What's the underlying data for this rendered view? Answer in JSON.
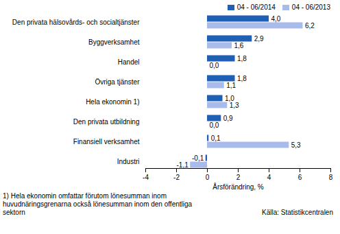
{
  "chart_data": {
    "type": "bar",
    "orientation": "horizontal",
    "categories": [
      "Den privata hälsovårds- och socialtjänster",
      "Byggverksamhet",
      "Handel",
      "Övriga tjänster",
      "Hela ekonomin 1)",
      "Den privata utbildning",
      "Finansiell verksamhet",
      "Industri"
    ],
    "series": [
      {
        "name": "04 - 06/2014",
        "color": "#1f5fb4",
        "values": [
          4.0,
          2.9,
          1.8,
          1.8,
          1.0,
          0.9,
          0.1,
          -0.1
        ],
        "value_labels": [
          "4,0",
          "2,9",
          "1,8",
          "1,8",
          "1,0",
          "0,9",
          "0,1",
          "-0,1"
        ]
      },
      {
        "name": "04 - 06/2013",
        "color": "#a9bbeb",
        "values": [
          6.2,
          1.6,
          0.0,
          1.1,
          1.3,
          0.0,
          5.3,
          -1.1
        ],
        "value_labels": [
          "6,2",
          "1,6",
          "0,0",
          "1,1",
          "1,3",
          "0,0",
          "5,3",
          "-1,1"
        ]
      }
    ],
    "x_label": "Årsförändring, %",
    "xlim": [
      -4,
      8
    ],
    "xticks": [
      -4,
      -2,
      0,
      2,
      4,
      6,
      8
    ],
    "grid": false,
    "legend": "top right",
    "data_labels": true,
    "annotations": [
      "1) Hela ekonomin omfattar förutom lönesumman inom huvudnäringsgrenarna också lönesumman inom den offentliga sektorn",
      "Källa: Statistikcentralen"
    ]
  }
}
